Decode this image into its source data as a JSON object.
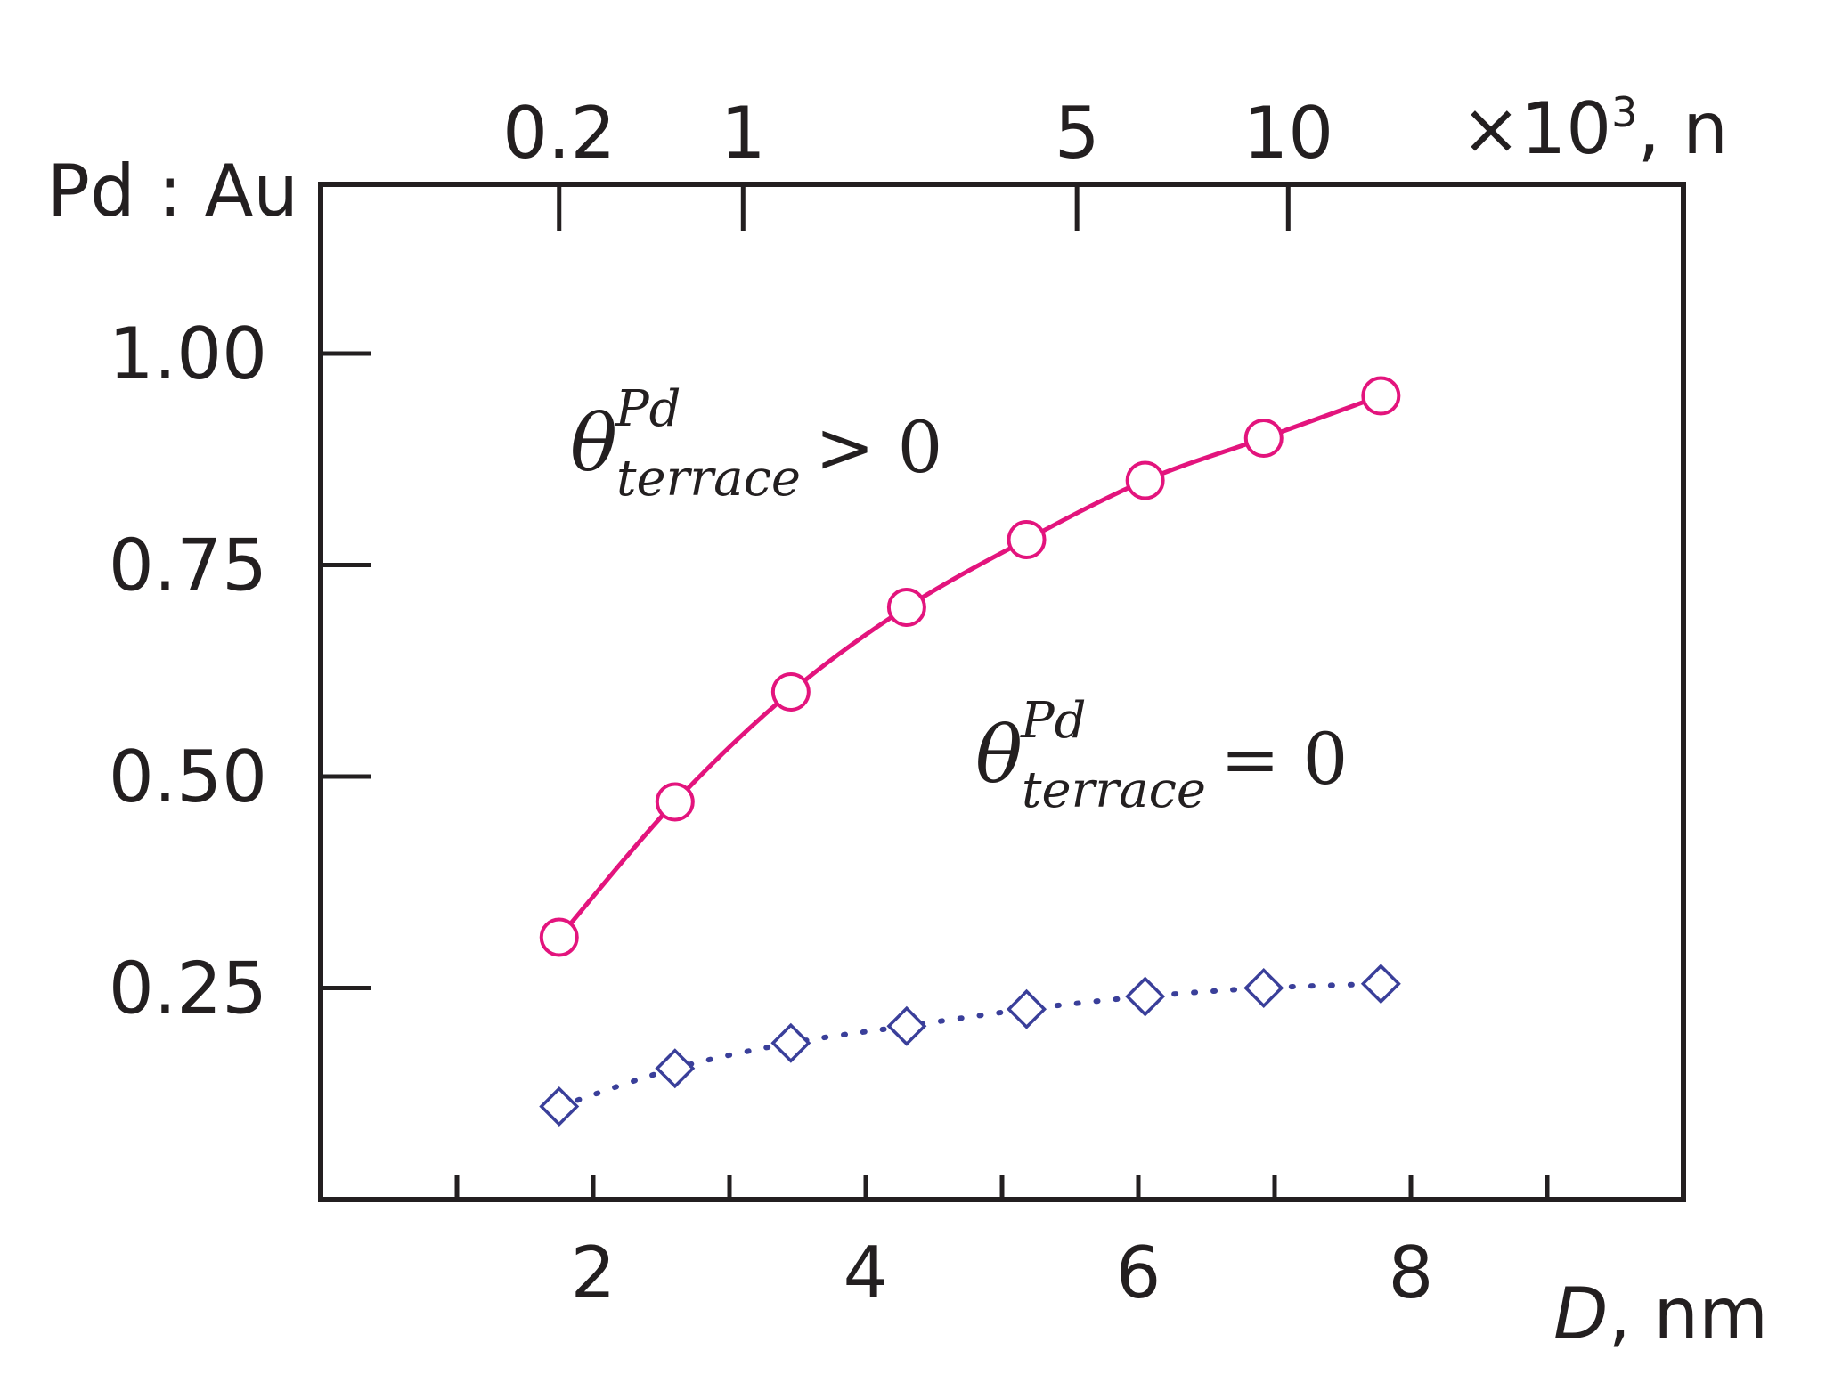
{
  "chart_data": {
    "type": "line",
    "ylabel": "Pd : Au",
    "xlabel": "D, nm",
    "xlabel_var": "D",
    "xlabel_unit": ", nm",
    "top_axis": {
      "label_prefix": "×10",
      "label_exp": "3",
      "label_suffix": ", n",
      "ticks": [
        {
          "label": "0.2",
          "at_x": 1.75
        },
        {
          "label": "1",
          "at_x": 3.1
        },
        {
          "label": "5",
          "at_x": 5.55
        },
        {
          "label": "10",
          "at_x": 7.1
        }
      ]
    },
    "xlim": [
      0,
      10
    ],
    "ylim": [
      0,
      1.2
    ],
    "x_ticks": [
      1,
      2,
      3,
      4,
      5,
      6,
      7,
      8,
      9
    ],
    "x_tick_labels": [
      {
        "value": 2,
        "label": "2"
      },
      {
        "value": 4,
        "label": "4"
      },
      {
        "value": 6,
        "label": "6"
      },
      {
        "value": 8,
        "label": "8"
      }
    ],
    "y_ticks": [
      {
        "value": 0.25,
        "label": "0.25"
      },
      {
        "value": 0.5,
        "label": "0.50"
      },
      {
        "value": 0.75,
        "label": "0.75"
      },
      {
        "value": 1.0,
        "label": "1.00"
      }
    ],
    "grid": false,
    "series": [
      {
        "marker": "circle",
        "line": "solid",
        "color": "#e3147d",
        "x": [
          1.75,
          2.6,
          3.45,
          4.3,
          5.18,
          6.05,
          6.92,
          7.78
        ],
        "y": [
          0.31,
          0.47,
          0.6,
          0.7,
          0.78,
          0.85,
          0.9,
          0.95
        ]
      },
      {
        "marker": "diamond",
        "line": "dotted",
        "color": "#3a3f9a",
        "x": [
          1.75,
          2.6,
          3.45,
          4.3,
          5.18,
          6.05,
          6.92,
          7.78
        ],
        "y": [
          0.11,
          0.155,
          0.185,
          0.205,
          0.225,
          0.24,
          0.25,
          0.255
        ]
      }
    ],
    "annotations": [
      {
        "symbol": "θ",
        "sup": "Pd",
        "sub": "terrace",
        "relation": "> 0"
      },
      {
        "symbol": "θ",
        "sup": "Pd",
        "sub": "terrace",
        "relation": "= 0"
      }
    ]
  }
}
